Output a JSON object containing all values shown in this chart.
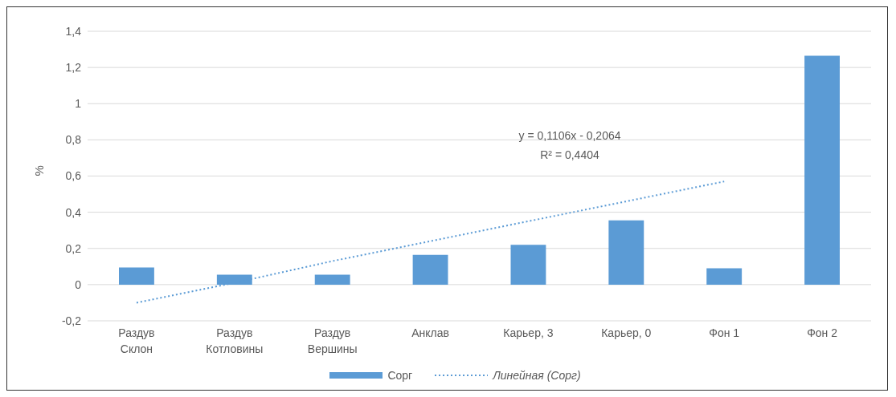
{
  "chart_data": {
    "type": "bar",
    "ylabel": "%",
    "categories": [
      "Раздув Склон",
      "Раздув Котловины",
      "Раздув Вершины",
      "Анклав",
      "Карьер, 3",
      "Карьер, 0",
      "Фон 1",
      "Фон 2"
    ],
    "series": [
      {
        "name": "Сорг",
        "color": "#5b9bd5",
        "values": [
          0.095,
          0.055,
          0.055,
          0.165,
          0.22,
          0.355,
          0.09,
          1.265
        ]
      },
      {
        "name": "Линейная (Сорг)",
        "type": "line",
        "line_style": "dotted",
        "marker": "none",
        "color": "#5b9bd5",
        "values": [
          -0.1,
          0.01,
          0.13,
          0.24,
          0.35,
          0.46,
          0.57,
          null
        ]
      }
    ],
    "annotations": [
      "y = 0,1106x - 0,2064",
      "R² = 0,4404"
    ],
    "ylim": [
      -0.2,
      1.4
    ],
    "yticks": [
      {
        "value": -0.2,
        "label": "-0,2"
      },
      0,
      {
        "value": 0.2,
        "label": "0,2"
      },
      {
        "value": 0.4,
        "label": "0,4"
      },
      {
        "value": 0.6,
        "label": "0,6"
      },
      {
        "value": 0.8,
        "label": "0,8"
      },
      1,
      {
        "value": 1.2,
        "label": "1,2"
      },
      {
        "value": 1.4,
        "label": "1,4"
      }
    ],
    "grid": "y",
    "legend": "bottom"
  }
}
